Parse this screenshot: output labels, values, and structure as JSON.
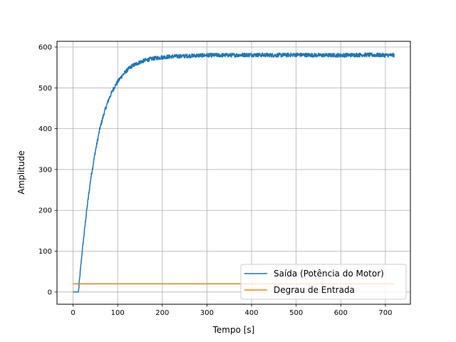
{
  "chart_data": {
    "type": "line",
    "title": "",
    "xlabel": "Tempo [s]",
    "ylabel": "Amplitude",
    "xlim": [
      -36,
      756
    ],
    "ylim": [
      -30,
      614
    ],
    "xticks": [
      0,
      100,
      200,
      300,
      400,
      500,
      600,
      700
    ],
    "yticks": [
      0,
      100,
      200,
      300,
      400,
      500,
      600
    ],
    "grid": true,
    "legend_position": "lower-right",
    "series": [
      {
        "name": "Saída (Potência do Motor)",
        "color": "#1f77b4",
        "x": [
          0,
          10,
          12,
          20,
          30,
          40,
          50,
          60,
          70,
          80,
          90,
          100,
          110,
          120,
          130,
          140,
          150,
          160,
          180,
          200,
          225,
          250,
          275,
          300,
          350,
          400,
          450,
          500,
          550,
          600,
          650,
          700,
          720
        ],
        "values": [
          0,
          0,
          0,
          95,
          195,
          280,
          345,
          400,
          440,
          472,
          497,
          515,
          530,
          542,
          552,
          558,
          563,
          567,
          572,
          575,
          577,
          578,
          579,
          580,
          580,
          581,
          580,
          581,
          580,
          580,
          581,
          580,
          580
        ],
        "noise_band": 5
      },
      {
        "name": "Degrau de Entrada",
        "color": "#ff7f0e",
        "x": [
          0,
          720
        ],
        "values": [
          20,
          20
        ]
      }
    ]
  }
}
